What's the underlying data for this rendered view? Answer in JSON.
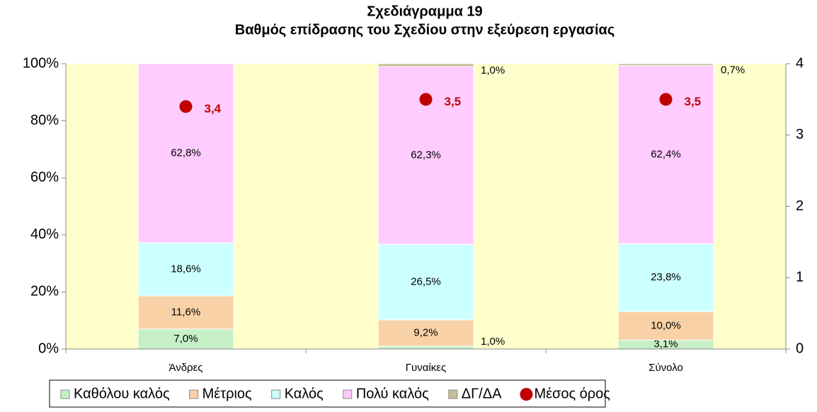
{
  "chart_data": {
    "type": "bar",
    "stacked": true,
    "title": "Σχεδιάγραμμα 19",
    "subtitle": "Βαθμός επίδρασης του Σχεδίου στην εξεύρεση εργασίας",
    "categories": [
      "Άνδρες",
      "Γυναίκες",
      "Σύνολο"
    ],
    "series": [
      {
        "name": "Καθόλου καλός",
        "color": "#c6efc6",
        "values": [
          7.0,
          1.0,
          3.1
        ],
        "value_labels": [
          "7,0%",
          "1,0%",
          "3,1%"
        ]
      },
      {
        "name": "Μέτριος",
        "color": "#f8d2a6",
        "values": [
          11.6,
          9.2,
          10.0
        ],
        "value_labels": [
          "11,6%",
          "9,2%",
          "10,0%"
        ]
      },
      {
        "name": "Καλός",
        "color": "#ccffff",
        "values": [
          18.6,
          26.5,
          23.8
        ],
        "value_labels": [
          "18,6%",
          "26,5%",
          "23,8%"
        ]
      },
      {
        "name": "Πολύ καλός",
        "color": "#ffccff",
        "values": [
          62.8,
          62.3,
          62.4
        ],
        "value_labels": [
          "62,8%",
          "62,3%",
          "62,4%"
        ]
      },
      {
        "name": "ΔΓ/ΔΑ",
        "color": "#c4bd97",
        "values": [
          0,
          1.0,
          0.7
        ],
        "value_labels": [
          null,
          "1,0%",
          "0,7%"
        ]
      },
      {
        "name": "Μέσος όρος",
        "color": "#c00000",
        "type": "scatter",
        "axis": "y2",
        "values": [
          3.4,
          3.5,
          3.5
        ],
        "value_labels": [
          "3,4",
          "3,5",
          "3,5"
        ]
      }
    ],
    "ylim": [
      0,
      100
    ],
    "yticks": [
      {
        "value": 0,
        "label": "0%"
      },
      {
        "value": 20,
        "label": "20%"
      },
      {
        "value": 40,
        "label": "40%"
      },
      {
        "value": 60,
        "label": "60%"
      },
      {
        "value": 80,
        "label": "80%"
      },
      {
        "value": 100,
        "label": "100%"
      }
    ],
    "y2lim": [
      0,
      4
    ],
    "y2ticks": [
      0,
      1,
      2,
      3,
      4
    ],
    "plot_background": "#ffffcc",
    "legend": "bottom"
  }
}
